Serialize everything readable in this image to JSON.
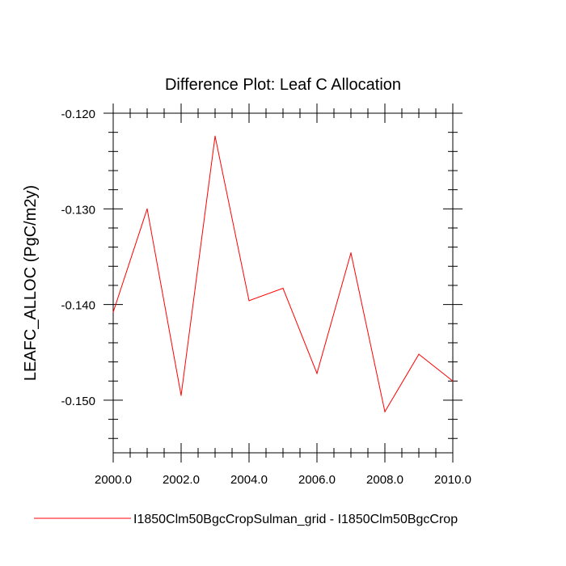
{
  "chart_data": {
    "type": "line",
    "title": "Difference Plot: Leaf C Allocation",
    "xlabel": "",
    "ylabel": "LEAFC_ALLOC  (PgC/m2y)",
    "xlim": [
      2000,
      2010
    ],
    "ylim": [
      -0.1555,
      -0.12
    ],
    "x_ticks": [
      "2000.0",
      "2002.0",
      "2004.0",
      "2006.0",
      "2008.0",
      "2010.0"
    ],
    "y_ticks": [
      "-0.120",
      "-0.130",
      "-0.140",
      "-0.150"
    ],
    "grid": false,
    "legend_position": "bottom",
    "series": [
      {
        "name": "I1850Clm50BgcCropSulman_grid - I1850Clm50BgcCrop",
        "color": "#ff0000",
        "x": [
          2000,
          2001,
          2002,
          2003,
          2004,
          2005,
          2006,
          2007,
          2008,
          2009,
          2010
        ],
        "values": [
          -0.1408,
          -0.13,
          -0.1495,
          -0.1224,
          -0.1396,
          -0.1383,
          -0.1472,
          -0.1346,
          -0.1512,
          -0.1452,
          -0.148
        ]
      }
    ]
  }
}
